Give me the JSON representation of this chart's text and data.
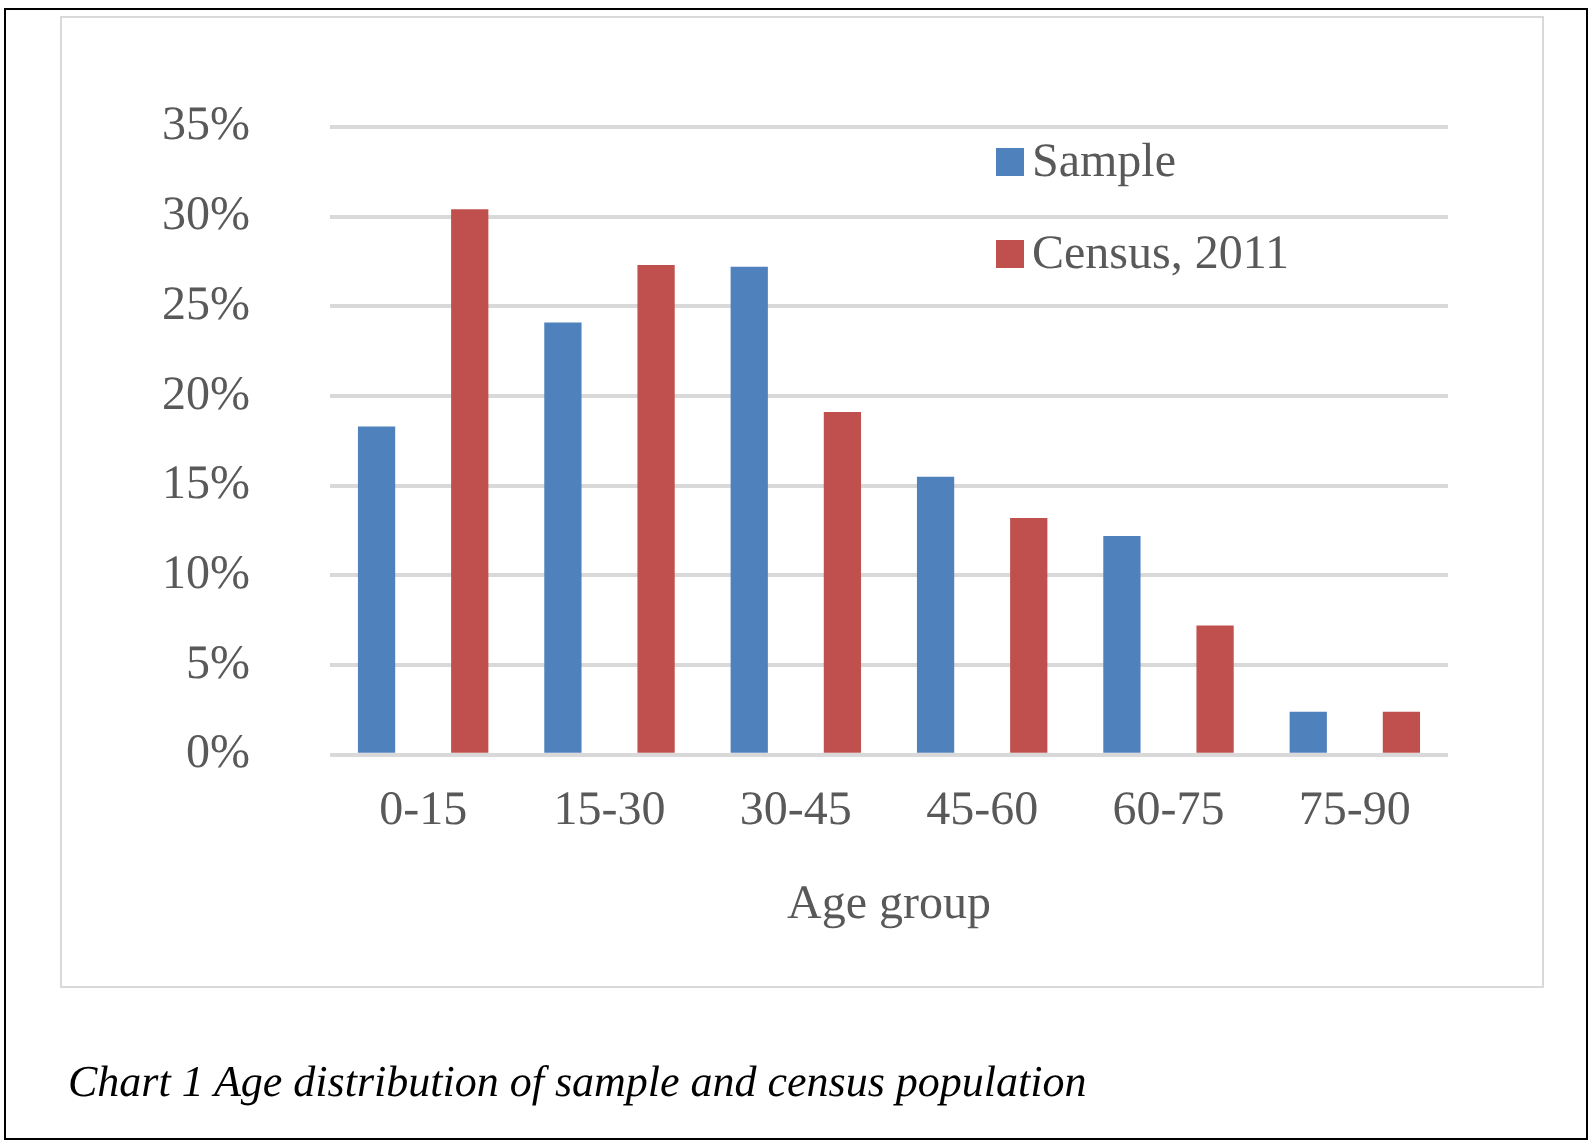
{
  "chart_data": {
    "type": "bar",
    "xlabel": "Age group",
    "categories": [
      "0-15",
      "15-30",
      "30-45",
      "45-60",
      "60-75",
      "75-90"
    ],
    "series": [
      {
        "name": "Sample",
        "color": "#4f81bd",
        "values": [
          18.3,
          24.1,
          27.2,
          15.5,
          12.2,
          2.4
        ]
      },
      {
        "name": "Census, 2011",
        "color": "#c0504d",
        "values": [
          30.4,
          27.3,
          19.1,
          13.2,
          7.2,
          2.4
        ]
      }
    ],
    "ylim": [
      0,
      35
    ],
    "yticks": [
      {
        "value": 0,
        "label": "0%"
      },
      {
        "value": 5,
        "label": "5%"
      },
      {
        "value": 10,
        "label": "10%"
      },
      {
        "value": 15,
        "label": "15%"
      },
      {
        "value": 20,
        "label": "20%"
      },
      {
        "value": 25,
        "label": "25%"
      },
      {
        "value": 30,
        "label": "30%"
      },
      {
        "value": 35,
        "label": "35%"
      }
    ],
    "grid": "y",
    "legend": "top right",
    "annotations": [
      "Chart 1 Age distribution of sample and census population"
    ]
  }
}
